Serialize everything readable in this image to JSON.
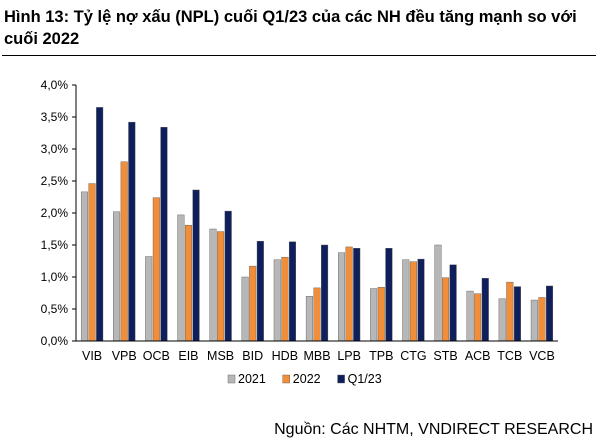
{
  "header": {
    "title": "Hình 13: Tỷ lệ nợ xấu (NPL) cuối Q1/23 của các NH đều tăng mạnh so với cuối 2022"
  },
  "footer": {
    "source": "Nguồn: Các NHTM, VNDIRECT RESEARCH"
  },
  "chart_data": {
    "type": "bar",
    "title": "",
    "xlabel": "",
    "ylabel": "",
    "ylim": [
      0,
      4.0
    ],
    "yticks": [
      "0,0%",
      "0,5%",
      "1,0%",
      "1,5%",
      "2,0%",
      "2,5%",
      "3,0%",
      "3,5%",
      "4,0%"
    ],
    "grid": false,
    "legend_position": "bottom",
    "categories": [
      "VIB",
      "VPB",
      "OCB",
      "EIB",
      "MSB",
      "BID",
      "HDB",
      "MBB",
      "LPB",
      "TPB",
      "CTG",
      "STB",
      "ACB",
      "TCB",
      "VCB"
    ],
    "series": [
      {
        "name": "2021",
        "color": "#b7b7b7",
        "values": [
          2.33,
          2.02,
          1.32,
          1.97,
          1.75,
          1.0,
          1.27,
          0.7,
          1.38,
          0.82,
          1.27,
          1.5,
          0.78,
          0.66,
          0.64
        ]
      },
      {
        "name": "2022",
        "color": "#f28e3a",
        "values": [
          2.46,
          2.8,
          2.24,
          1.81,
          1.71,
          1.17,
          1.31,
          0.83,
          1.47,
          0.84,
          1.24,
          0.99,
          0.74,
          0.92,
          0.68
        ]
      },
      {
        "name": "Q1/23",
        "color": "#0f1f5c",
        "values": [
          3.65,
          3.42,
          3.34,
          2.36,
          2.03,
          1.56,
          1.55,
          1.5,
          1.45,
          1.45,
          1.28,
          1.19,
          0.98,
          0.85,
          0.86
        ]
      }
    ]
  }
}
